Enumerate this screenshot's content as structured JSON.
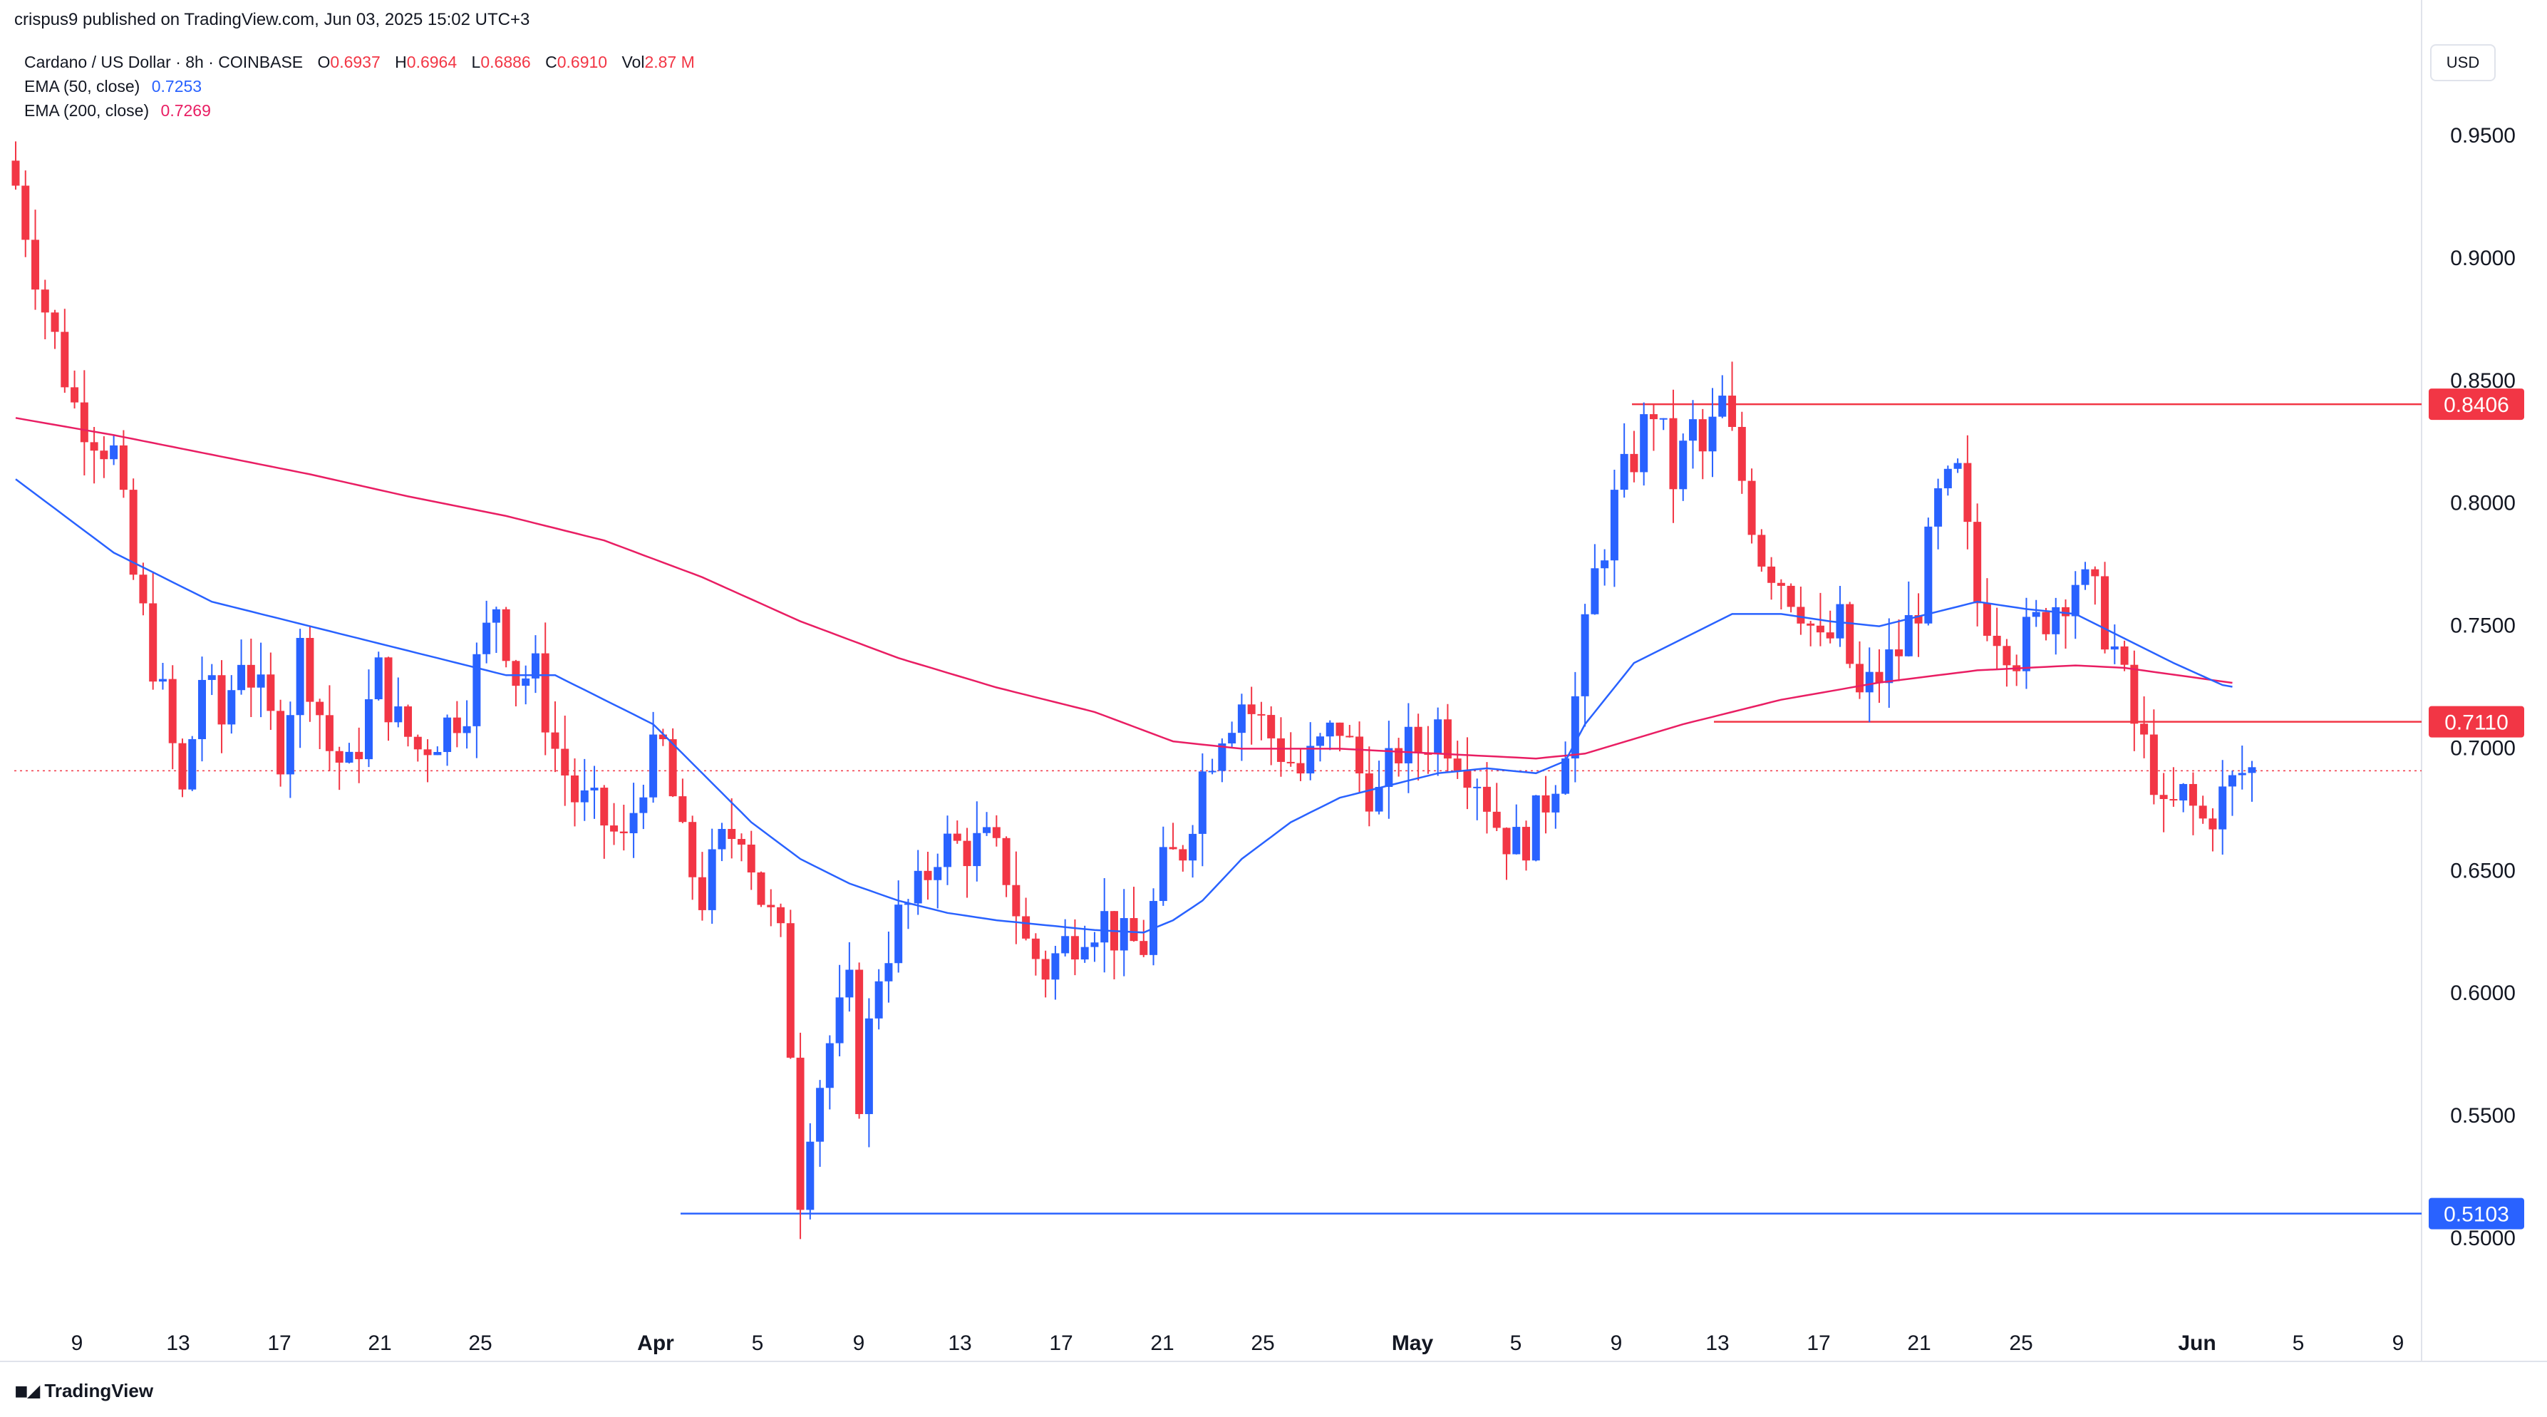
{
  "header": {
    "published": "crispus9 published on TradingView.com, Jun 03, 2025 15:02 UTC+3"
  },
  "legend": {
    "symbol": "Cardano / US Dollar · 8h · COINBASE",
    "o_label": "O",
    "o_value": "0.6937",
    "h_label": "H",
    "h_value": "0.6964",
    "l_label": "L",
    "l_value": "0.6886",
    "c_label": "C",
    "c_value": "0.6910",
    "vol_label": "Vol",
    "vol_value": "2.87 M",
    "ema50_label": "EMA (50, close)",
    "ema50_value": "0.7253",
    "ema200_label": "EMA (200, close)",
    "ema200_value": "0.7269"
  },
  "currency_button": "USD",
  "footer": {
    "brand": "TradingView"
  },
  "colors": {
    "up": "#2962ff",
    "down": "#f23645",
    "ema50": "#2962ff",
    "ema200": "#e91e63",
    "support": "#2962ff",
    "resistance": "#f23645"
  },
  "chart_data": {
    "type": "candlestick",
    "timeframe": "8h",
    "ylim": [
      0.48,
      0.98
    ],
    "y_ticks": [
      "0.9500",
      "0.9000",
      "0.8500",
      "0.8000",
      "0.7500",
      "0.7000",
      "0.6500",
      "0.6000",
      "0.5500",
      "0.5000"
    ],
    "x_ticks": [
      "9",
      "13",
      "17",
      "21",
      "25",
      "Apr",
      "5",
      "9",
      "13",
      "17",
      "21",
      "25",
      "May",
      "5",
      "9",
      "13",
      "17",
      "21",
      "25",
      "Jun",
      "5",
      "9"
    ],
    "horizontal_levels": [
      {
        "label": "0.8406",
        "value": 0.8406,
        "color": "#f23645"
      },
      {
        "label": "0.7110",
        "value": 0.711,
        "color": "#f23645"
      },
      {
        "label": "0.5103",
        "value": 0.5103,
        "color": "#2962ff"
      }
    ],
    "last_price": 0.691,
    "close_path": [
      [
        0,
        0.93
      ],
      [
        3,
        0.88
      ],
      [
        6,
        0.84
      ],
      [
        10,
        0.82
      ],
      [
        12,
        0.77
      ],
      [
        15,
        0.72
      ],
      [
        17,
        0.68
      ],
      [
        19,
        0.73
      ],
      [
        21,
        0.71
      ],
      [
        23,
        0.74
      ],
      [
        25,
        0.72
      ],
      [
        27,
        0.7
      ],
      [
        29,
        0.74
      ],
      [
        30,
        0.73
      ],
      [
        32,
        0.7
      ],
      [
        34,
        0.69
      ],
      [
        37,
        0.73
      ],
      [
        39,
        0.71
      ],
      [
        41,
        0.7
      ],
      [
        44,
        0.71
      ],
      [
        46,
        0.72
      ],
      [
        49,
        0.76
      ],
      [
        51,
        0.73
      ],
      [
        53,
        0.73
      ],
      [
        55,
        0.7
      ],
      [
        57,
        0.68
      ],
      [
        60,
        0.67
      ],
      [
        62,
        0.66
      ],
      [
        64,
        0.69
      ],
      [
        66,
        0.7
      ],
      [
        68,
        0.66
      ],
      [
        70,
        0.64
      ],
      [
        72,
        0.66
      ],
      [
        74,
        0.67
      ],
      [
        76,
        0.64
      ],
      [
        78,
        0.62
      ],
      [
        79,
        0.58
      ],
      [
        80,
        0.52
      ],
      [
        81,
        0.55
      ],
      [
        83,
        0.58
      ],
      [
        85,
        0.6
      ],
      [
        86,
        0.56
      ],
      [
        88,
        0.61
      ],
      [
        90,
        0.63
      ],
      [
        92,
        0.64
      ],
      [
        94,
        0.66
      ],
      [
        96,
        0.66
      ],
      [
        99,
        0.66
      ],
      [
        101,
        0.65
      ],
      [
        103,
        0.62
      ],
      [
        105,
        0.61
      ],
      [
        107,
        0.62
      ],
      [
        109,
        0.63
      ],
      [
        111,
        0.63
      ],
      [
        113,
        0.62
      ],
      [
        115,
        0.62
      ],
      [
        117,
        0.65
      ],
      [
        119,
        0.66
      ],
      [
        121,
        0.69
      ],
      [
        123,
        0.71
      ],
      [
        125,
        0.72
      ],
      [
        127,
        0.71
      ],
      [
        129,
        0.7
      ],
      [
        131,
        0.69
      ],
      [
        133,
        0.7
      ],
      [
        135,
        0.71
      ],
      [
        137,
        0.69
      ],
      [
        139,
        0.68
      ],
      [
        141,
        0.7
      ],
      [
        143,
        0.7
      ],
      [
        145,
        0.71
      ],
      [
        147,
        0.7
      ],
      [
        149,
        0.69
      ],
      [
        151,
        0.67
      ],
      [
        153,
        0.66
      ],
      [
        155,
        0.67
      ],
      [
        157,
        0.69
      ],
      [
        159,
        0.72
      ],
      [
        161,
        0.77
      ],
      [
        163,
        0.8
      ],
      [
        165,
        0.82
      ],
      [
        167,
        0.84
      ],
      [
        169,
        0.81
      ],
      [
        171,
        0.83
      ],
      [
        172,
        0.82
      ],
      [
        174,
        0.84
      ],
      [
        176,
        0.81
      ],
      [
        178,
        0.78
      ],
      [
        180,
        0.77
      ],
      [
        182,
        0.76
      ],
      [
        184,
        0.74
      ],
      [
        186,
        0.75
      ],
      [
        188,
        0.72
      ],
      [
        190,
        0.73
      ],
      [
        192,
        0.74
      ],
      [
        194,
        0.76
      ],
      [
        196,
        0.8
      ],
      [
        198,
        0.81
      ],
      [
        200,
        0.76
      ],
      [
        202,
        0.75
      ],
      [
        204,
        0.74
      ],
      [
        206,
        0.75
      ],
      [
        208,
        0.76
      ],
      [
        210,
        0.77
      ],
      [
        212,
        0.76
      ],
      [
        214,
        0.74
      ],
      [
        216,
        0.71
      ],
      [
        218,
        0.69
      ],
      [
        219,
        0.67
      ],
      [
        221,
        0.68
      ],
      [
        223,
        0.67
      ],
      [
        225,
        0.68
      ],
      [
        227,
        0.69
      ],
      [
        228,
        0.691
      ]
    ],
    "ema50_path": [
      [
        0,
        0.81
      ],
      [
        10,
        0.78
      ],
      [
        20,
        0.76
      ],
      [
        30,
        0.75
      ],
      [
        40,
        0.74
      ],
      [
        50,
        0.73
      ],
      [
        55,
        0.73
      ],
      [
        60,
        0.72
      ],
      [
        65,
        0.71
      ],
      [
        70,
        0.69
      ],
      [
        75,
        0.67
      ],
      [
        80,
        0.655
      ],
      [
        85,
        0.645
      ],
      [
        90,
        0.638
      ],
      [
        95,
        0.633
      ],
      [
        100,
        0.63
      ],
      [
        105,
        0.628
      ],
      [
        110,
        0.626
      ],
      [
        115,
        0.625
      ],
      [
        118,
        0.63
      ],
      [
        121,
        0.638
      ],
      [
        125,
        0.655
      ],
      [
        130,
        0.67
      ],
      [
        135,
        0.68
      ],
      [
        140,
        0.685
      ],
      [
        145,
        0.69
      ],
      [
        150,
        0.692
      ],
      [
        155,
        0.69
      ],
      [
        158,
        0.695
      ],
      [
        160,
        0.71
      ],
      [
        165,
        0.735
      ],
      [
        170,
        0.745
      ],
      [
        175,
        0.755
      ],
      [
        180,
        0.755
      ],
      [
        185,
        0.752
      ],
      [
        190,
        0.75
      ],
      [
        195,
        0.755
      ],
      [
        200,
        0.76
      ],
      [
        205,
        0.757
      ],
      [
        210,
        0.755
      ],
      [
        215,
        0.745
      ],
      [
        220,
        0.735
      ],
      [
        225,
        0.726
      ],
      [
        226,
        0.7253
      ]
    ],
    "ema200_path": [
      [
        0,
        0.835
      ],
      [
        10,
        0.828
      ],
      [
        20,
        0.82
      ],
      [
        30,
        0.812
      ],
      [
        40,
        0.803
      ],
      [
        50,
        0.795
      ],
      [
        60,
        0.785
      ],
      [
        70,
        0.77
      ],
      [
        80,
        0.752
      ],
      [
        90,
        0.737
      ],
      [
        100,
        0.725
      ],
      [
        110,
        0.715
      ],
      [
        118,
        0.703
      ],
      [
        125,
        0.7
      ],
      [
        135,
        0.7
      ],
      [
        145,
        0.698
      ],
      [
        155,
        0.696
      ],
      [
        160,
        0.698
      ],
      [
        170,
        0.71
      ],
      [
        180,
        0.72
      ],
      [
        190,
        0.727
      ],
      [
        200,
        0.732
      ],
      [
        210,
        0.734
      ],
      [
        215,
        0.733
      ],
      [
        226,
        0.7269
      ]
    ]
  }
}
